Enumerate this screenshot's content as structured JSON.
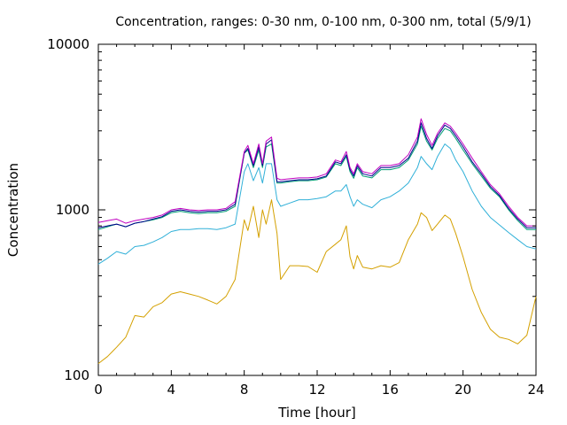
{
  "chart_data": {
    "type": "line",
    "title": "Concentration, ranges: 0-30 nm, 0-100 nm, 0-300 nm, total (5/9/1)",
    "xlabel": "Time [hour]",
    "ylabel": "Concentration",
    "xlim": [
      0,
      24
    ],
    "ylim": [
      100,
      10000
    ],
    "yscale": "log",
    "grid": false,
    "legend": "none",
    "x_ticks": [
      0,
      4,
      8,
      12,
      16,
      20,
      24
    ],
    "x_tick_labels": [
      "0",
      "4",
      "8",
      "12",
      "16",
      "20",
      "24"
    ],
    "y_ticks": [
      100,
      1000,
      10000
    ],
    "y_tick_labels": [
      "100",
      "1000",
      "10000"
    ],
    "x": [
      0,
      0.5,
      1,
      1.5,
      2,
      2.5,
      3,
      3.5,
      4,
      4.5,
      5,
      5.5,
      6,
      6.5,
      7,
      7.5,
      8,
      8.2,
      8.5,
      8.8,
      9,
      9.2,
      9.5,
      9.8,
      10,
      10.5,
      11,
      11.5,
      12,
      12.5,
      13,
      13.3,
      13.6,
      13.8,
      14,
      14.2,
      14.5,
      15,
      15.5,
      16,
      16.5,
      17,
      17.5,
      17.7,
      18,
      18.3,
      18.6,
      19,
      19.3,
      19.6,
      20,
      20.5,
      21,
      21.5,
      22,
      22.5,
      23,
      23.5,
      24
    ],
    "series": [
      {
        "color": "#d4a000",
        "values": [
          118,
          130,
          148,
          170,
          230,
          225,
          260,
          275,
          310,
          320,
          310,
          300,
          285,
          270,
          300,
          380,
          870,
          750,
          1050,
          680,
          1000,
          820,
          1150,
          720,
          380,
          460,
          460,
          455,
          420,
          560,
          620,
          660,
          800,
          520,
          440,
          530,
          450,
          440,
          460,
          450,
          480,
          660,
          820,
          960,
          900,
          750,
          820,
          930,
          880,
          720,
          520,
          330,
          240,
          190,
          170,
          165,
          155,
          175,
          300
        ]
      },
      {
        "color": "#30b0d8",
        "values": [
          470,
          510,
          560,
          540,
          600,
          610,
          640,
          680,
          740,
          760,
          760,
          770,
          770,
          760,
          780,
          820,
          1700,
          1900,
          1500,
          1800,
          1450,
          1900,
          1900,
          1150,
          1050,
          1100,
          1150,
          1150,
          1170,
          1200,
          1300,
          1300,
          1420,
          1200,
          1050,
          1150,
          1080,
          1030,
          1150,
          1200,
          1300,
          1450,
          1800,
          2100,
          1900,
          1750,
          2100,
          2500,
          2350,
          2000,
          1700,
          1300,
          1050,
          900,
          810,
          730,
          660,
          600,
          580
        ]
      },
      {
        "color": "#009e73",
        "values": [
          760,
          790,
          820,
          790,
          830,
          850,
          870,
          900,
          960,
          980,
          960,
          950,
          960,
          960,
          980,
          1050,
          2200,
          2300,
          1800,
          2300,
          1800,
          2400,
          2500,
          1450,
          1450,
          1480,
          1500,
          1500,
          1520,
          1580,
          1900,
          1850,
          2100,
          1700,
          1550,
          1800,
          1600,
          1560,
          1750,
          1750,
          1800,
          2000,
          2500,
          3200,
          2600,
          2300,
          2700,
          3100,
          3000,
          2700,
          2300,
          1900,
          1600,
          1350,
          1200,
          1000,
          860,
          760,
          760
        ]
      },
      {
        "color": "#00008b",
        "values": [
          780,
          800,
          820,
          790,
          830,
          850,
          880,
          910,
          980,
          1000,
          980,
          970,
          980,
          980,
          1000,
          1080,
          2200,
          2350,
          1850,
          2400,
          1850,
          2500,
          2650,
          1480,
          1480,
          1500,
          1520,
          1520,
          1540,
          1600,
          1950,
          1900,
          2150,
          1750,
          1600,
          1850,
          1650,
          1600,
          1800,
          1800,
          1850,
          2050,
          2600,
          3350,
          2700,
          2350,
          2800,
          3250,
          3100,
          2800,
          2400,
          1950,
          1650,
          1380,
          1220,
          1020,
          880,
          780,
          780
        ]
      },
      {
        "color": "#c000c0",
        "values": [
          840,
          860,
          880,
          830,
          860,
          880,
          900,
          930,
          1000,
          1020,
          1000,
          990,
          1000,
          1000,
          1020,
          1120,
          2250,
          2450,
          1900,
          2500,
          1900,
          2600,
          2750,
          1550,
          1520,
          1540,
          1560,
          1560,
          1580,
          1650,
          2000,
          1950,
          2250,
          1800,
          1650,
          1900,
          1700,
          1650,
          1850,
          1850,
          1900,
          2150,
          2750,
          3550,
          2850,
          2450,
          2900,
          3350,
          3200,
          2900,
          2500,
          2050,
          1700,
          1420,
          1250,
          1050,
          900,
          800,
          800
        ]
      }
    ]
  }
}
